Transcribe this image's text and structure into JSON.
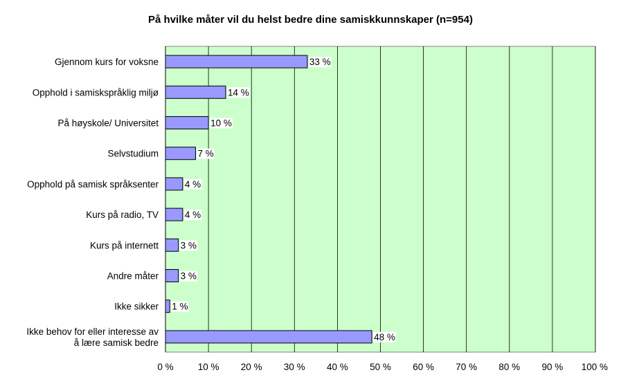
{
  "chart_data": {
    "type": "bar",
    "orientation": "horizontal",
    "title": "På hvilke måter vil du helst bedre dine samiskkunnskaper (n=954)",
    "xlabel": "",
    "ylabel": "",
    "categories": [
      "Gjennom kurs for voksne",
      "Opphold i samiskspråklig miljø",
      "På høyskole/ Universitet",
      "Selvstudium",
      "Opphold på samisk språksenter",
      "Kurs på radio, TV",
      "Kurs på internett",
      "Andre måter",
      "Ikke sikker",
      [
        "Ikke behov for eller interesse av",
        "å lære samisk bedre"
      ]
    ],
    "values": [
      33,
      14,
      10,
      7,
      4,
      4,
      3,
      3,
      1,
      48
    ],
    "data_labels": [
      "33 %",
      "14 %",
      "10 %",
      "7 %",
      "4 %",
      "4 %",
      "3 %",
      "3 %",
      "1 %",
      "48 %"
    ],
    "xlim": [
      0,
      100
    ],
    "xticks": [
      0,
      10,
      20,
      30,
      40,
      50,
      60,
      70,
      80,
      90,
      100
    ],
    "xtick_labels": [
      "0 %",
      "10 %",
      "20 %",
      "30 %",
      "40 %",
      "50 %",
      "60 %",
      "70 %",
      "80 %",
      "90 %",
      "100 %"
    ],
    "grid": true,
    "legend": "none",
    "colors": {
      "plot_background": "#ccffcc",
      "bar_fill": "#9999ff",
      "bar_stroke": "#000000",
      "grid": "#000000"
    }
  }
}
